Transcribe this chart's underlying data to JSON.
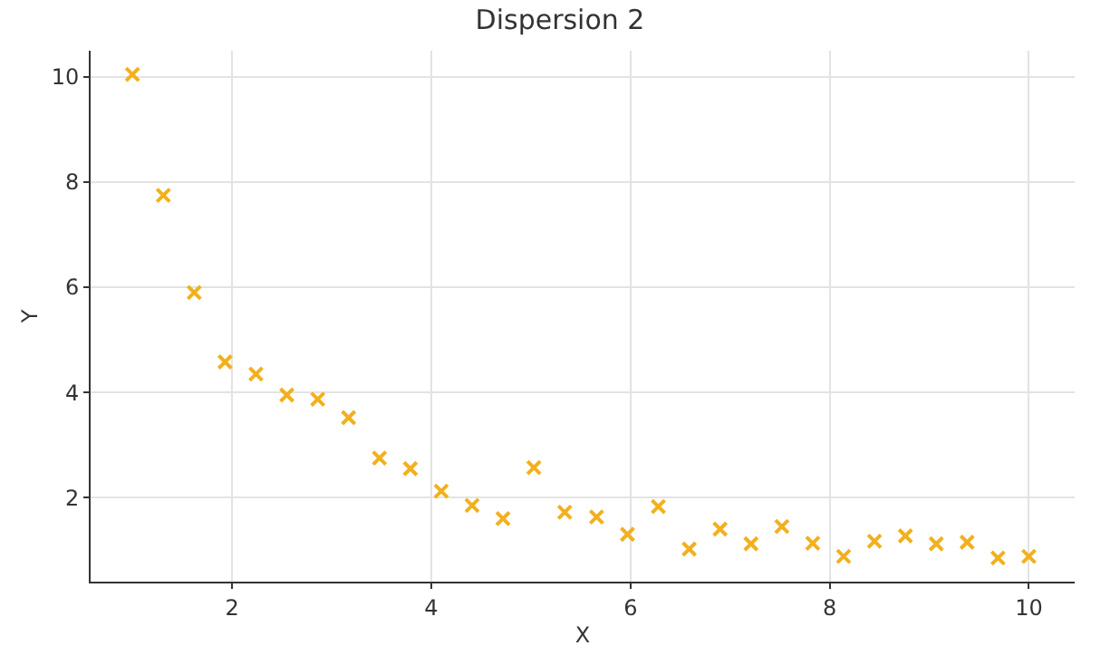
{
  "chart_data": {
    "type": "scatter",
    "title": "Dispersion 2",
    "xlabel": "X",
    "ylabel": "Y",
    "x": [
      1.0,
      1.31,
      1.62,
      1.93,
      2.24,
      2.55,
      2.86,
      3.17,
      3.48,
      3.79,
      4.1,
      4.41,
      4.72,
      5.03,
      5.34,
      5.66,
      5.97,
      6.28,
      6.59,
      6.9,
      7.21,
      7.52,
      7.83,
      8.14,
      8.45,
      8.76,
      9.07,
      9.38,
      9.69,
      10.0
    ],
    "series": [
      {
        "color": "#f2b01e",
        "values": [
          10.05,
          7.75,
          5.9,
          4.58,
          4.35,
          3.95,
          3.87,
          3.52,
          2.75,
          2.55,
          2.12,
          1.85,
          1.6,
          2.57,
          1.72,
          1.63,
          1.3,
          1.83,
          1.02,
          1.4,
          1.12,
          1.45,
          1.13,
          0.88,
          1.17,
          1.27,
          1.12,
          1.15,
          0.85,
          0.88
        ]
      }
    ],
    "xlim": [
      0.58,
      10.46
    ],
    "ylim": [
      0.4,
      10.5
    ],
    "xticks": [
      2,
      4,
      6,
      8,
      10
    ],
    "yticks": [
      2,
      4,
      6,
      8,
      10
    ],
    "grid": true,
    "marker": "cross",
    "legend": false
  }
}
